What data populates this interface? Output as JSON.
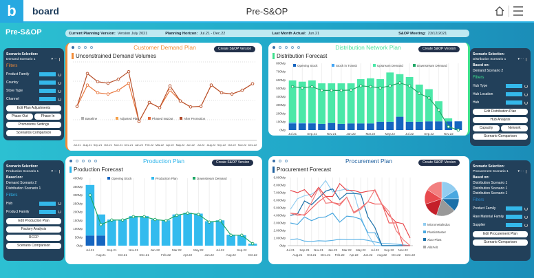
{
  "header": {
    "logo_letter": "b",
    "logo": "board",
    "title": "Pre-S&OP",
    "home_icon": "home-icon",
    "menu_icon": "hamburger-menu-icon"
  },
  "page_title": "Pre-S&OP",
  "info": {
    "cpv_label": "Current Planning Version:",
    "cpv": "Version July 2021",
    "ph_label": "Planning Horizon:",
    "ph": "Jul.21 - Dec.22",
    "lma_label": "Last Month Actual:",
    "lma": "Jun.21",
    "meet_label": "S&OP Meeting:",
    "meet": "23/12/2021"
  },
  "create_btn": "Create S&OP Version",
  "colors": {
    "customer": "#f28c38",
    "distribution": "#3de08c",
    "production": "#2eb4ea",
    "procurement": "#1e5f9e",
    "sidebar": "#22405a"
  },
  "sidebars": {
    "demand": {
      "sel_label": "Scenario Selection:",
      "scenario": "Demand Scenario 1",
      "filters": "Filters",
      "filter_items": [
        "Product Family",
        "Country",
        "Store Type",
        "Channel"
      ],
      "buttons": [
        "Edit Plan Adjustments",
        "Phase Out",
        "Phase In",
        "Promotions Settings",
        "Scenarios Comparison"
      ]
    },
    "distribution": {
      "sel_label": "Scenario Selection:",
      "scenario": "Distribution Scenario 1",
      "based_label": "Based on:",
      "based": [
        "Demand Scenario 2"
      ],
      "filters": "Filters",
      "filter_items": [
        "Hub Type",
        "Hub Location",
        "Hub"
      ],
      "buttons": [
        "Edit Distribution Plan",
        "Hub Analysis",
        "Capacity",
        "Network",
        "Scenario Comparison"
      ]
    },
    "production": {
      "sel_label": "Scenario Selection:",
      "scenario": "Production Scenario 1",
      "based_label": "Based on:",
      "based": [
        "Demand Scenario 2",
        "Distribution Scenario 1"
      ],
      "filters": "Filters",
      "filter_items": [
        "Hub",
        "Product Family"
      ],
      "buttons": [
        "Edit Production Plan",
        "Factory Analysis",
        "RCCP",
        "Scenario Comparison"
      ]
    },
    "procurement": {
      "sel_label": "Scenario Selection:",
      "scenario": "Procurement Scenario 1",
      "based_label": "Based on:",
      "based": [
        "Distribution Scenario 1",
        "Distribution Scenario 1",
        "Distribution Scenario 1"
      ],
      "filters": "Filters",
      "filter_items": [
        "Product Family",
        "Raw Material Family",
        "Supplier"
      ],
      "buttons": [
        "Edit Procurement Plan",
        "Scenario Comparison"
      ]
    }
  },
  "panels": {
    "customer": {
      "title": "Customer Demand Plan",
      "chart_title": "Unconstrained Demand Volumes",
      "pages": 4
    },
    "distribution": {
      "title": "Distribution Network Plan",
      "chart_title": "Distribution Forecast",
      "pages": 5
    },
    "production": {
      "title": "Production Plan",
      "chart_title": "Production Forecast",
      "pages": 5
    },
    "procurement": {
      "title": "Procurement Plan",
      "chart_title": "Procurement Forecast",
      "pages": 3
    }
  },
  "chart_data": [
    {
      "id": "customer",
      "type": "line",
      "categories": [
        "Jul.21",
        "Aug.21",
        "Sep.21",
        "Oct.21",
        "Nov.21",
        "Dec.21",
        "Jan.22",
        "Feb.22",
        "Mar.22",
        "Apr.22",
        "May.22",
        "Jun.22",
        "Jul.22",
        "Aug.22",
        "Sep.22",
        "Oct.22",
        "Nov.22",
        "Dec.22"
      ],
      "ylim": [
        0,
        300
      ],
      "legend": [
        {
          "name": "Baseline",
          "color": "#b0b0b0"
        },
        {
          "name": "Adjusted Plan",
          "color": "#f5a04a"
        },
        {
          "name": "Phased In&Out",
          "color": "#e0683a"
        },
        {
          "name": "After Promotion",
          "color": "#b04a2a"
        }
      ],
      "series": [
        {
          "name": "After Promotion",
          "color": "#b8532f",
          "values": [
            127,
            255,
            223,
            217,
            233,
            262,
            68,
            142,
            122,
            207,
            148,
            125,
            127,
            210,
            180,
            175,
            190,
            215
          ]
        },
        {
          "name": "Adjusted Plan",
          "color": "#e8763c",
          "values": [
            127,
            210,
            180,
            175,
            190,
            217,
            68,
            142,
            122,
            190,
            148,
            125,
            127,
            210,
            180,
            175,
            190,
            215
          ]
        }
      ]
    },
    {
      "id": "distribution",
      "type": "bar",
      "stacked": true,
      "categories": [
        "Jul.21",
        "Aug.21",
        "Sep.21",
        "Oct.21",
        "Nov.21",
        "Dec.21",
        "Jan.22",
        "Feb.22",
        "Mar.22",
        "Apr.22",
        "May.22",
        "Jun.22",
        "Jul.22",
        "Aug.22",
        "Sep.22",
        "Oct.22",
        "Nov.22",
        "Dec.22"
      ],
      "ylim": [
        0,
        800
      ],
      "yticks": [
        "0Mp",
        "100Mp",
        "200Mp",
        "300Mp",
        "400Mp",
        "500Mp",
        "600Mp",
        "700Mp",
        "800Mp"
      ],
      "legend": [
        {
          "name": "Opening Stock",
          "color": "#1565c0"
        },
        {
          "name": "Stock in Transit",
          "color": "#42a5f5"
        },
        {
          "name": "Upstream Demand",
          "color": "#4be8a8"
        },
        {
          "name": "Downstream Demand",
          "color": "#1ea866"
        }
      ],
      "opening_stock": [
        80,
        80,
        80,
        75,
        85,
        75,
        80,
        80,
        80,
        100,
        100,
        160,
        100,
        100,
        105,
        105,
        105,
        105
      ],
      "stock_in_transit": [
        10,
        5,
        5,
        0,
        0,
        0,
        0,
        0,
        0,
        0,
        0,
        0,
        0,
        0,
        0,
        0,
        0,
        0
      ],
      "upstream_demand": [
        505,
        495,
        510,
        485,
        475,
        485,
        480,
        530,
        540,
        510,
        590,
        510,
        535,
        445,
        385,
        240,
        35,
        0
      ],
      "downstream_demand": [
        520,
        505,
        520,
        475,
        475,
        475,
        480,
        530,
        520,
        505,
        530,
        565,
        530,
        440,
        385,
        240,
        40,
        0
      ]
    },
    {
      "id": "production",
      "type": "bar",
      "stacked": true,
      "categories": [
        "Jul.21",
        "Aug.21",
        "Sep.21",
        "Oct.21",
        "Nov.21",
        "Dec.21",
        "Jan.22",
        "Feb.22",
        "Mar.22",
        "Apr.22",
        "May.22",
        "Jun.22",
        "Jul.22",
        "Aug.22",
        "Sep.22",
        "Oct.22"
      ],
      "ylim": [
        0,
        400
      ],
      "yticks": [
        "0Mp",
        "50Mp",
        "100Mp",
        "150Mp",
        "200Mp",
        "250Mp",
        "300Mp",
        "350Mp",
        "400Mp"
      ],
      "legend": [
        {
          "name": "Opening Stock",
          "color": "#1565c0"
        },
        {
          "name": "Production Plan",
          "color": "#33bbee"
        },
        {
          "name": "Downstream Demand",
          "color": "#1ea866"
        }
      ],
      "opening_stock": [
        60,
        60,
        0,
        0,
        0,
        0,
        0,
        0,
        0,
        0,
        0,
        0,
        0,
        0,
        0,
        0
      ],
      "production_plan": [
        300,
        125,
        155,
        155,
        175,
        175,
        155,
        150,
        185,
        195,
        190,
        145,
        150,
        65,
        62,
        12
      ],
      "downstream_demand": [
        300,
        125,
        152,
        152,
        172,
        172,
        155,
        148,
        180,
        193,
        185,
        140,
        148,
        62,
        62,
        12
      ]
    },
    {
      "id": "procurement",
      "type": "line",
      "categories": [
        "Jul.21",
        "Aug.21",
        "Sep.21",
        "Oct.21",
        "Nov.21",
        "Dec.21",
        "Jan.22",
        "Feb.22",
        "Mar.22",
        "Apr.22",
        "May.22",
        "Jun.22",
        "Jul.22",
        "Aug.22",
        "Sep.22",
        "Oct.22",
        "Nov.22",
        "Dec.22"
      ],
      "ylim": [
        0,
        9000
      ],
      "yticks": [
        "0Mp",
        "1.000Mp",
        "2.000Mp",
        "3.000Mp",
        "4.000Mp",
        "5.000Mp",
        "6.000Mp",
        "7.000Mp",
        "8.000Mp",
        "9.000Mp"
      ],
      "legend": [
        {
          "name": "Micrometalindus",
          "color": "#93cdf0"
        },
        {
          "name": "PlasticMaster",
          "color": "#4aa8e0"
        },
        {
          "name": "Xiao-Plast",
          "color": "#1a6fa8"
        },
        {
          "name": "All4Felt",
          "color": "#aaaaaa"
        }
      ],
      "series": [
        {
          "name": "Micrometalindus",
          "color": "#93cdf0",
          "values": [
            4800,
            6200,
            6600,
            6800,
            7400,
            8600,
            7100,
            7300,
            7500,
            7000,
            3800,
            1500,
            0,
            0,
            0,
            0,
            0,
            0
          ]
        },
        {
          "name": "PlasticMaster",
          "color": "#4aa8e0",
          "values": [
            3000,
            2800,
            3800,
            3300,
            3700,
            3800,
            4300,
            3100,
            3900,
            3800,
            3500,
            1700,
            1700,
            0,
            0,
            0,
            0,
            0
          ]
        },
        {
          "name": "All4Felt",
          "color": "#5bb2e6",
          "values": [
            800,
            900,
            600,
            550,
            650,
            600,
            700,
            850,
            800,
            800,
            850,
            700,
            500,
            300,
            250,
            200,
            100,
            0
          ]
        },
        {
          "name": "Xiao-Plast",
          "color": "#1a6fa8",
          "values": [
            4000,
            4200,
            5900,
            5400,
            6300,
            7200,
            7500,
            6100,
            6900,
            6900,
            6800,
            3800,
            2400,
            0,
            0,
            0,
            0,
            0
          ]
        },
        {
          "color": "#e8464a",
          "values": [
            7300,
            7000,
            7400,
            6400,
            7700,
            6500,
            6500,
            8200,
            7300,
            7300,
            7000,
            7200,
            7300,
            5400,
            4000,
            3100,
            2900,
            1000
          ]
        },
        {
          "color": "#f06060",
          "values": [
            4300,
            4200,
            4000,
            4900,
            5800,
            6500,
            5700,
            5500,
            6400,
            4400,
            5000,
            5800,
            5500,
            5500,
            3000,
            3000,
            0,
            0
          ]
        },
        {
          "color": "#f28080",
          "values": [
            4300,
            4000,
            4100,
            5700,
            7600,
            5600,
            5700,
            5300,
            6400,
            4300,
            4800,
            5800,
            7400,
            5500,
            4500,
            2000,
            800,
            0
          ]
        }
      ],
      "pie": [
        {
          "color": "#93cdf0",
          "value": 16
        },
        {
          "color": "#4aa8e0",
          "value": 9
        },
        {
          "color": "#1a6fa8",
          "value": 12
        },
        {
          "color": "#999999",
          "value": 18
        },
        {
          "color": "#c4202a",
          "value": 15
        },
        {
          "color": "#e84a4e",
          "value": 14
        },
        {
          "color": "#f28080",
          "value": 16
        }
      ]
    }
  ]
}
